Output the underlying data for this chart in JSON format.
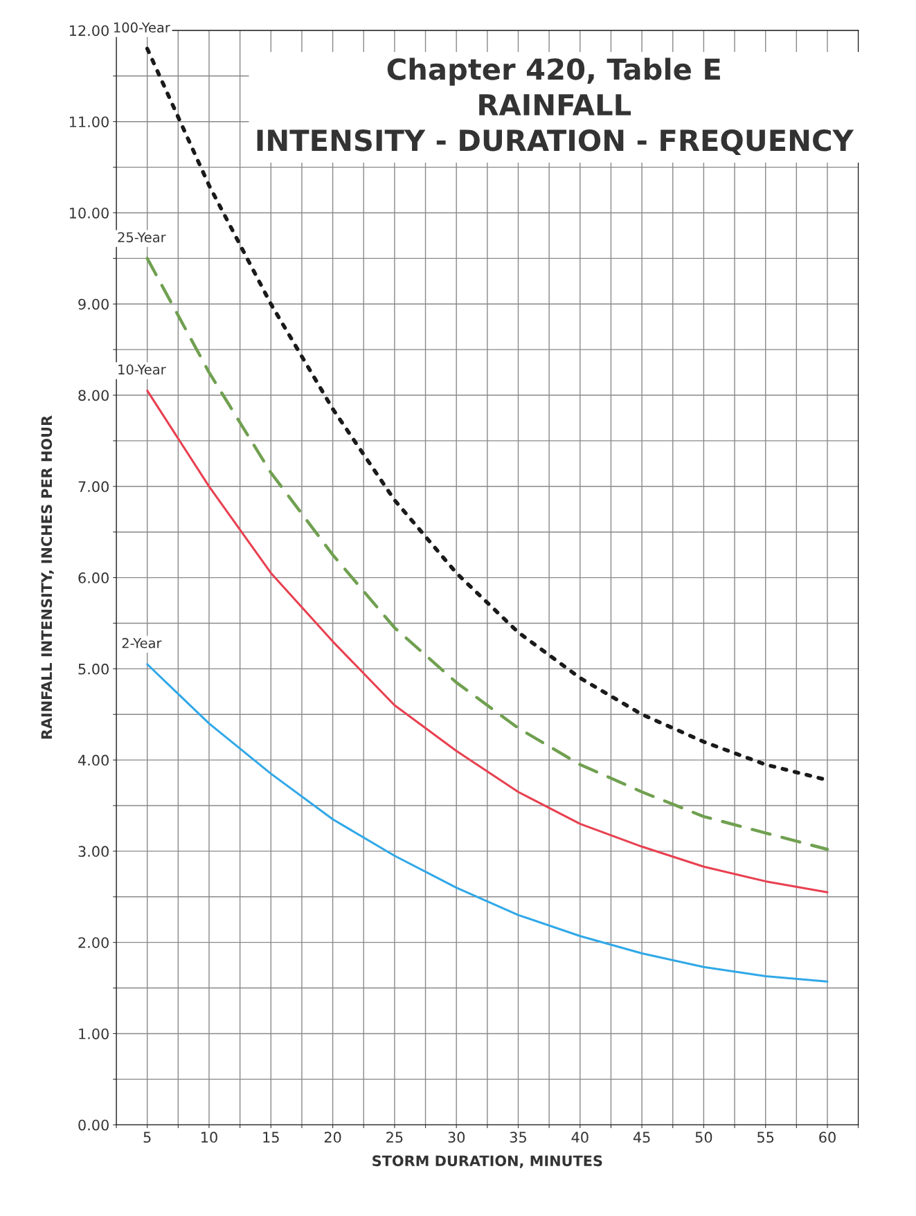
{
  "chart_data": {
    "type": "line",
    "title": "Chapter 420, Table E\nRAINFALL\nINTENSITY - DURATION - FREQUENCY",
    "xlabel": "STORM DURATION, MINUTES",
    "ylabel": "RAINFALL INTENSITY, INCHES PER HOUR",
    "x": [
      5,
      10,
      15,
      20,
      25,
      30,
      35,
      40,
      45,
      50,
      55,
      60
    ],
    "series": [
      {
        "name": "100-Year",
        "color": "#1a1a1a",
        "line_style": "dotted",
        "values": [
          11.8,
          10.3,
          9.0,
          7.85,
          6.85,
          6.05,
          5.4,
          4.9,
          4.5,
          4.2,
          3.95,
          3.78
        ]
      },
      {
        "name": "25-Year",
        "color": "#70a050",
        "line_style": "dashed",
        "values": [
          9.5,
          8.25,
          7.15,
          6.25,
          5.45,
          4.85,
          4.35,
          3.95,
          3.65,
          3.38,
          3.2,
          3.02
        ]
      },
      {
        "name": "10-Year",
        "color": "#e84050",
        "line_style": "solid",
        "values": [
          8.05,
          7.0,
          6.05,
          5.3,
          4.6,
          4.1,
          3.65,
          3.3,
          3.05,
          2.83,
          2.67,
          2.55
        ]
      },
      {
        "name": "2-Year",
        "color": "#30a8e8",
        "line_style": "solid",
        "values": [
          5.05,
          4.4,
          3.85,
          3.35,
          2.95,
          2.6,
          2.3,
          2.07,
          1.88,
          1.73,
          1.63,
          1.57
        ]
      }
    ],
    "xlim": [
      2.5,
      62.5
    ],
    "xticks": [
      {
        "value": 2.5,
        "label": null
      },
      5,
      {
        "value": 7.5,
        "label": null
      },
      10,
      {
        "value": 12.5,
        "label": null
      },
      15,
      {
        "value": 17.5,
        "label": null
      },
      20,
      {
        "value": 22.5,
        "label": null
      },
      25,
      {
        "value": 27.5,
        "label": null
      },
      30,
      {
        "value": 32.5,
        "label": null
      },
      35,
      {
        "value": 37.5,
        "label": null
      },
      40,
      {
        "value": 42.5,
        "label": null
      },
      45,
      {
        "value": 47.5,
        "label": null
      },
      50,
      {
        "value": 52.5,
        "label": null
      },
      55,
      {
        "value": 57.5,
        "label": null
      },
      60,
      {
        "value": 62.5,
        "label": null
      }
    ],
    "ylim": [
      0,
      12
    ],
    "yticks": [
      {
        "value": 0,
        "label": "0.00"
      },
      {
        "value": 0.5,
        "label": null
      },
      {
        "value": 1,
        "label": "1.00"
      },
      {
        "value": 1.5,
        "label": null
      },
      {
        "value": 2,
        "label": "2.00"
      },
      {
        "value": 2.5,
        "label": null
      },
      {
        "value": 3,
        "label": "3.00"
      },
      {
        "value": 3.5,
        "label": null
      },
      {
        "value": 4,
        "label": "4.00"
      },
      {
        "value": 4.5,
        "label": null
      },
      {
        "value": 5,
        "label": "5.00"
      },
      {
        "value": 5.5,
        "label": null
      },
      {
        "value": 6,
        "label": "6.00"
      },
      {
        "value": 6.5,
        "label": null
      },
      {
        "value": 7,
        "label": "7.00"
      },
      {
        "value": 7.5,
        "label": null
      },
      {
        "value": 8,
        "label": "8.00"
      },
      {
        "value": 8.5,
        "label": null
      },
      {
        "value": 9,
        "label": "9.00"
      },
      {
        "value": 9.5,
        "label": null
      },
      {
        "value": 10,
        "label": "10.00"
      },
      {
        "value": 10.5,
        "label": null
      },
      {
        "value": 11,
        "label": "11.00"
      },
      {
        "value": 11.5,
        "label": null
      },
      {
        "value": 12,
        "label": "12.00"
      }
    ],
    "grid": true,
    "marker": "none",
    "legend": false
  }
}
